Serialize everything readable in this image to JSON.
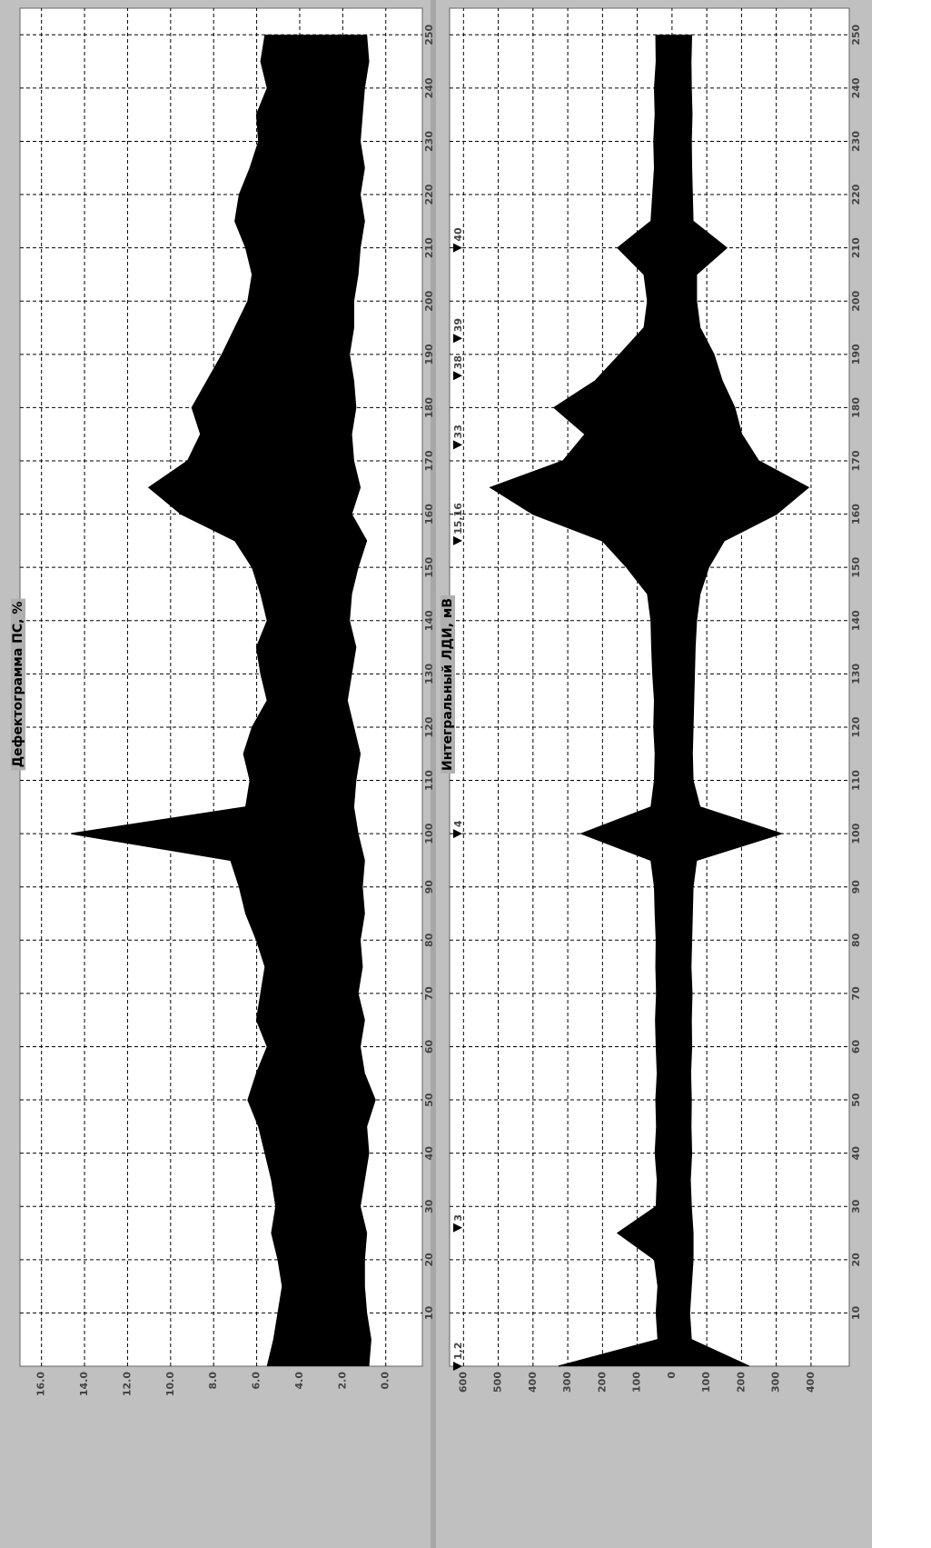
{
  "chart_data": [
    {
      "type": "line",
      "title": "Дефектограмма ПС, %",
      "x": [
        0,
        5,
        10,
        15,
        20,
        25,
        30,
        35,
        40,
        45,
        50,
        55,
        60,
        65,
        70,
        75,
        80,
        85,
        90,
        95,
        100,
        105,
        110,
        115,
        120,
        125,
        130,
        135,
        140,
        145,
        150,
        155,
        160,
        165,
        170,
        175,
        180,
        185,
        190,
        195,
        200,
        205,
        210,
        215,
        220,
        225,
        230,
        235,
        240,
        245,
        250
      ],
      "series": [
        {
          "color": "#000000",
          "values": [
            5.5,
            5.2,
            5.0,
            4.8,
            5.0,
            5.3,
            5.1,
            5.3,
            5.6,
            5.9,
            6.4,
            6.0,
            5.5,
            6.0,
            5.8,
            5.6,
            6.0,
            6.5,
            6.8,
            7.2,
            14.6,
            6.5,
            6.3,
            6.6,
            6.2,
            5.5,
            5.8,
            6.0,
            5.5,
            5.8,
            6.2,
            7.0,
            9.5,
            11.0,
            9.2,
            8.6,
            9.0,
            8.3,
            7.6,
            7.0,
            6.4,
            6.2,
            6.5,
            7.0,
            6.8,
            6.3,
            5.9,
            6.0,
            5.5,
            5.8,
            5.6
          ]
        },
        {
          "color": "#000000",
          "values": [
            0.8,
            0.7,
            0.9,
            1.0,
            1.0,
            0.9,
            1.2,
            1.0,
            0.8,
            0.9,
            0.5,
            1.0,
            1.2,
            1.0,
            1.3,
            1.1,
            1.2,
            1.0,
            1.1,
            1.0,
            1.3,
            1.5,
            1.4,
            1.2,
            1.5,
            1.8,
            1.6,
            1.4,
            1.7,
            1.6,
            1.3,
            0.9,
            1.6,
            1.2,
            1.5,
            1.6,
            1.4,
            1.5,
            1.7,
            1.5,
            1.5,
            1.3,
            1.2,
            1.0,
            1.2,
            1.0,
            1.2,
            1.1,
            1.0,
            0.8,
            0.9
          ]
        }
      ],
      "xlim": [
        0,
        255
      ],
      "xticks": [
        10,
        20,
        30,
        40,
        50,
        60,
        70,
        80,
        90,
        100,
        110,
        120,
        130,
        140,
        150,
        160,
        170,
        180,
        190,
        200,
        210,
        220,
        230,
        240,
        250
      ],
      "ylim": [
        -1.7,
        17
      ],
      "yticks": [
        {
          "value": 0,
          "label": "0.0"
        },
        {
          "value": 2,
          "label": "2.0"
        },
        {
          "value": 4,
          "label": "4.0"
        },
        {
          "value": 6,
          "label": "6.0"
        },
        {
          "value": 8,
          "label": "8.0"
        },
        {
          "value": 10,
          "label": "10.0"
        },
        {
          "value": 12,
          "label": "12.0"
        },
        {
          "value": 14,
          "label": "14.0"
        },
        {
          "value": 16,
          "label": "16.0"
        }
      ],
      "grid": true
    },
    {
      "type": "line",
      "title": "Интегральный ЛДИ, мВ",
      "x": [
        0,
        5,
        10,
        15,
        20,
        25,
        30,
        35,
        40,
        45,
        50,
        55,
        60,
        65,
        70,
        75,
        80,
        85,
        90,
        95,
        100,
        105,
        110,
        115,
        120,
        125,
        130,
        135,
        140,
        145,
        150,
        155,
        160,
        165,
        170,
        175,
        180,
        185,
        190,
        195,
        200,
        205,
        210,
        215,
        220,
        225,
        230,
        235,
        240,
        245,
        250
      ],
      "series": [
        {
          "color": "#000000",
          "values": [
            326,
            40,
            45,
            40,
            50,
            156,
            45,
            42,
            48,
            44,
            46,
            42,
            45,
            47,
            44,
            46,
            45,
            48,
            50,
            60,
            260,
            60,
            50,
            48,
            52,
            50,
            55,
            58,
            60,
            70,
            130,
            200,
            400,
            522,
            313,
            250,
            339,
            221,
            150,
            80,
            70,
            80,
            156,
            60,
            55,
            50,
            52,
            48,
            50,
            45,
            46
          ]
        },
        {
          "color": "#000000",
          "values": [
            -222,
            -55,
            -50,
            -55,
            -60,
            -60,
            -55,
            -52,
            -56,
            -54,
            -55,
            -53,
            -56,
            -55,
            -57,
            -54,
            -56,
            -58,
            -60,
            -70,
            -314,
            -80,
            -60,
            -58,
            -60,
            -62,
            -64,
            -66,
            -70,
            -80,
            -105,
            -150,
            -300,
            -392,
            -249,
            -200,
            -180,
            -144,
            -120,
            -80,
            -70,
            -70,
            -157,
            -60,
            -58,
            -56,
            -55,
            -57,
            -55,
            -54,
            -56
          ]
        }
      ],
      "xlim": [
        0,
        255
      ],
      "xticks": [
        10,
        20,
        30,
        40,
        50,
        60,
        70,
        80,
        90,
        100,
        110,
        120,
        130,
        140,
        150,
        160,
        170,
        180,
        190,
        200,
        210,
        220,
        230,
        240,
        250
      ],
      "ylim": [
        -510,
        640
      ],
      "yticks": [
        {
          "value": -400,
          "label": "400"
        },
        {
          "value": -300,
          "label": "300"
        },
        {
          "value": -200,
          "label": "200"
        },
        {
          "value": -100,
          "label": "100"
        },
        0,
        100,
        200,
        300,
        400,
        500,
        600
      ],
      "grid": true,
      "markers": [
        {
          "x": 0,
          "label": "1,2"
        },
        {
          "x": 26,
          "label": "3"
        },
        {
          "x": 100,
          "label": "4"
        },
        {
          "x": 155,
          "label": "15,16"
        },
        {
          "x": 173,
          "label": "33"
        },
        {
          "x": 186,
          "label": "38"
        },
        {
          "x": 193,
          "label": "39"
        },
        {
          "x": 210,
          "label": "40"
        }
      ]
    }
  ]
}
